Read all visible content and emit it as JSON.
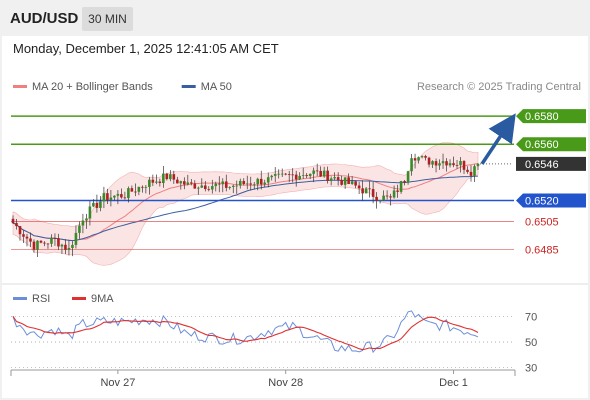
{
  "header": {
    "pair": "AUD/USD",
    "timeframe": "30 MIN",
    "datetime": "Monday, December 1, 2025 12:41:05 AM CET"
  },
  "chart_data": {
    "type": "candlestick",
    "legend": [
      {
        "name": "MA 20 + Bollinger Bands",
        "color": "#f08080"
      },
      {
        "name": "MA 50",
        "color": "#3a5fa0"
      }
    ],
    "credit": "Research © 2025 Trading Central",
    "price_axis": {
      "min": 0.6462,
      "max": 0.6595
    },
    "levels": [
      {
        "value": 0.658,
        "label": "0.6580",
        "kind": "resistance",
        "color": "#4a9a1a"
      },
      {
        "value": 0.656,
        "label": "0.6560",
        "kind": "resistance",
        "color": "#4a9a1a"
      },
      {
        "value": 0.6546,
        "label": "0.6546",
        "kind": "last",
        "color": "#333333"
      },
      {
        "value": 0.652,
        "label": "0.6520",
        "kind": "pivot",
        "color": "#2255cc"
      },
      {
        "value": 0.6505,
        "label": "0.6505",
        "kind": "support",
        "color": "#e05050"
      },
      {
        "value": 0.6485,
        "label": "0.6485",
        "kind": "support",
        "color": "#e05050"
      }
    ],
    "x_labels": [
      {
        "label": "Nov 27",
        "index": 30
      },
      {
        "label": "Nov 28",
        "index": 78
      },
      {
        "label": "Dec 1",
        "index": 126
      }
    ],
    "arrow": {
      "from": 0.6546,
      "to": 0.6578
    },
    "anchors": [
      [
        0,
        0.6504
      ],
      [
        6,
        0.6488
      ],
      [
        12,
        0.6492
      ],
      [
        16,
        0.6485
      ],
      [
        20,
        0.6508
      ],
      [
        26,
        0.6522
      ],
      [
        32,
        0.6524
      ],
      [
        38,
        0.6532
      ],
      [
        44,
        0.6537
      ],
      [
        50,
        0.6531
      ],
      [
        56,
        0.6531
      ],
      [
        62,
        0.653
      ],
      [
        68,
        0.6533
      ],
      [
        74,
        0.6535
      ],
      [
        80,
        0.6538
      ],
      [
        86,
        0.654
      ],
      [
        92,
        0.6536
      ],
      [
        98,
        0.653
      ],
      [
        104,
        0.6523
      ],
      [
        108,
        0.6521
      ],
      [
        112,
        0.6535
      ],
      [
        114,
        0.6553
      ],
      [
        118,
        0.6548
      ],
      [
        124,
        0.6548
      ],
      [
        128,
        0.6546
      ],
      [
        131,
        0.6541
      ],
      [
        133,
        0.6546
      ]
    ],
    "rsi": {
      "legend": [
        {
          "name": "RSI",
          "color": "#6a8fd8"
        },
        {
          "name": "9MA",
          "color": "#e03030"
        }
      ],
      "axis": {
        "min": 20,
        "max": 80
      },
      "levels": [
        70,
        50,
        30
      ],
      "anchors": [
        [
          0,
          68
        ],
        [
          6,
          56
        ],
        [
          12,
          60
        ],
        [
          16,
          54
        ],
        [
          20,
          64
        ],
        [
          26,
          66
        ],
        [
          32,
          66
        ],
        [
          38,
          68
        ],
        [
          44,
          66
        ],
        [
          50,
          56
        ],
        [
          56,
          54
        ],
        [
          62,
          52
        ],
        [
          68,
          54
        ],
        [
          74,
          60
        ],
        [
          80,
          62
        ],
        [
          86,
          54
        ],
        [
          92,
          46
        ],
        [
          98,
          44
        ],
        [
          104,
          47
        ],
        [
          108,
          52
        ],
        [
          112,
          68
        ],
        [
          114,
          74
        ],
        [
          118,
          64
        ],
        [
          124,
          63
        ],
        [
          128,
          60
        ],
        [
          131,
          58
        ],
        [
          133,
          57
        ]
      ]
    }
  }
}
